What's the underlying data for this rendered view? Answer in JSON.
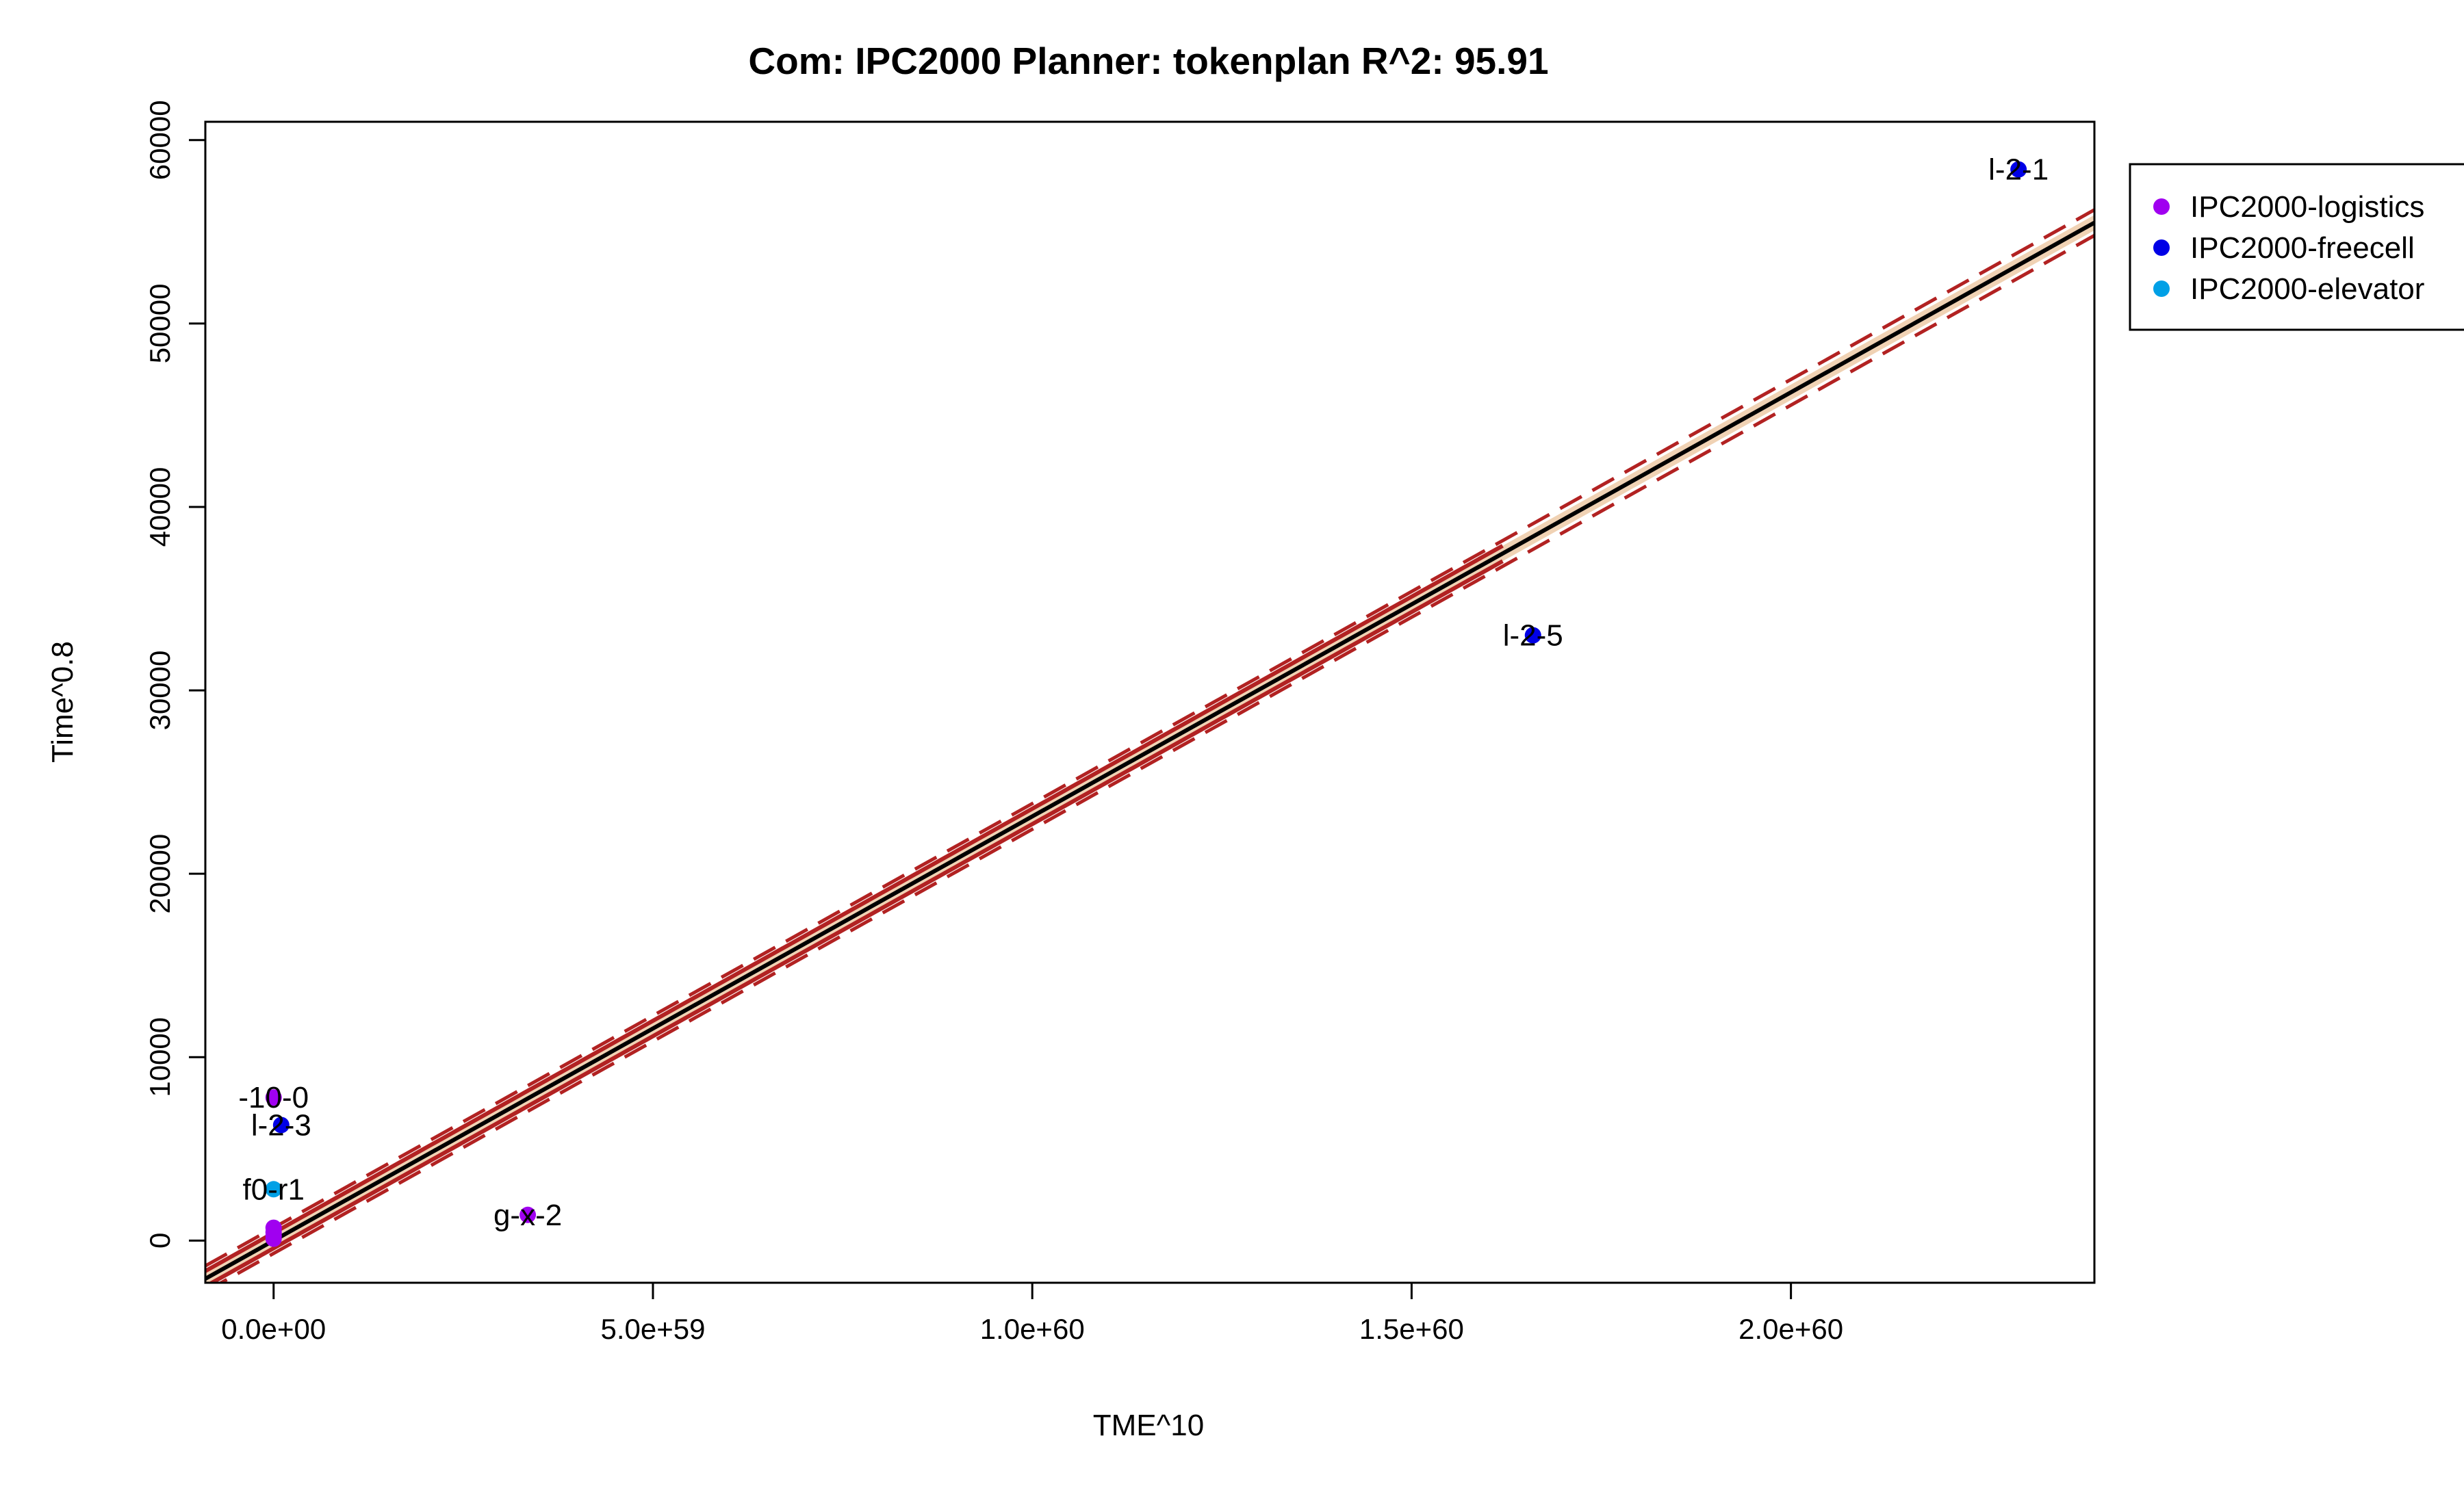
{
  "chart_data": {
    "type": "scatter",
    "title": "Com: IPC2000 Planner: tokenplan R^2: 95.91",
    "xlabel": "TME^10",
    "ylabel": "Time^0.8",
    "xlim": [
      -9e+58,
      2.4e+60
    ],
    "ylim": [
      -2300,
      61000
    ],
    "x_ticks": [
      0,
      5e+59,
      1e+60,
      1.5e+60,
      2e+60
    ],
    "x_tick_labels": [
      "0.0e+00",
      "5.0e+59",
      "1.0e+60",
      "1.5e+60",
      "2.0e+60"
    ],
    "y_ticks": [
      0,
      10000,
      20000,
      30000,
      40000,
      50000,
      60000
    ],
    "y_tick_labels": [
      "0",
      "10000",
      "20000",
      "30000",
      "40000",
      "50000",
      "60000"
    ],
    "grid": false,
    "legend_position": "outside-top-right",
    "series": [
      {
        "name": "IPC2000-logistics",
        "color": "#a000f0",
        "points": [
          {
            "x": 0,
            "y": 7800,
            "label": "-10-0"
          },
          {
            "x": 3.35e+59,
            "y": 1400,
            "label": "g-x-2"
          },
          {
            "x": 0,
            "y": 700,
            "label": ""
          },
          {
            "x": 0,
            "y": 450,
            "label": ""
          },
          {
            "x": 0,
            "y": 250,
            "label": ""
          },
          {
            "x": 0,
            "y": 100,
            "label": ""
          }
        ]
      },
      {
        "name": "IPC2000-freecell",
        "color": "#0000e6",
        "points": [
          {
            "x": 2.3e+60,
            "y": 58400,
            "label": "l-2-1"
          },
          {
            "x": 1.66e+60,
            "y": 33000,
            "label": "l-2-5"
          },
          {
            "x": 1e+58,
            "y": 6300,
            "label": "l-2-3"
          }
        ]
      },
      {
        "name": "IPC2000-elevator",
        "color": "#00a0e6",
        "points": [
          {
            "x": 0,
            "y": 2800,
            "label": "f0-r1"
          }
        ]
      }
    ],
    "regression": {
      "intercept": 0,
      "slope": 2.3125e-56,
      "confidence_band_halfwidth": 420,
      "prediction_band_halfwidth": 700,
      "line_color": "#000000",
      "band_fill": "#f0d2b4",
      "band_line_color": "#b22222"
    }
  }
}
